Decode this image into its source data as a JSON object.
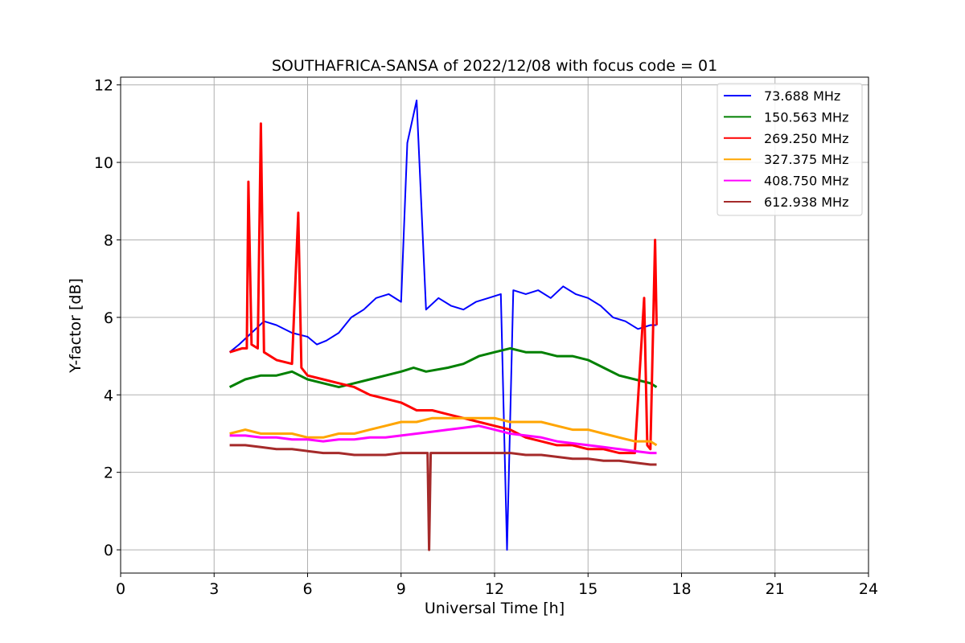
{
  "chart_data": {
    "type": "line",
    "title": "SOUTHAFRICA-SANSA of 2022/12/08 with focus code = 01",
    "xlabel": "Universal Time [h]",
    "ylabel": "Y-factor [dB]",
    "xlim": [
      0,
      24
    ],
    "ylim": [
      -0.6,
      12.2
    ],
    "xticks": [
      0,
      3,
      6,
      9,
      12,
      15,
      18,
      21,
      24
    ],
    "xtick_labels": [
      "0",
      "3",
      "6",
      "9",
      "12",
      "15",
      "18",
      "21",
      "24"
    ],
    "yticks": [
      0,
      2,
      4,
      6,
      8,
      10,
      12
    ],
    "ytick_labels": [
      "0",
      "2",
      "4",
      "6",
      "8",
      "10",
      "12"
    ],
    "grid": true,
    "legend_position": "top-right",
    "series": [
      {
        "name": " 73.688 MHz",
        "color": "#0000ff",
        "x": [
          3.5,
          3.8,
          4.2,
          4.6,
          5.0,
          5.5,
          6.0,
          6.3,
          6.6,
          7.0,
          7.4,
          7.8,
          8.2,
          8.6,
          9.0,
          9.2,
          9.5,
          9.8,
          10.2,
          10.6,
          11.0,
          11.4,
          11.8,
          12.2,
          12.4,
          12.6,
          13.0,
          13.4,
          13.8,
          14.2,
          14.6,
          15.0,
          15.4,
          15.8,
          16.2,
          16.6,
          17.0,
          17.2
        ],
        "y": [
          5.1,
          5.3,
          5.6,
          5.9,
          5.8,
          5.6,
          5.5,
          5.3,
          5.4,
          5.6,
          6.0,
          6.2,
          6.5,
          6.6,
          6.4,
          10.5,
          11.6,
          6.2,
          6.5,
          6.3,
          6.2,
          6.4,
          6.5,
          6.6,
          0.0,
          6.7,
          6.6,
          6.7,
          6.5,
          6.8,
          6.6,
          6.5,
          6.3,
          6.0,
          5.9,
          5.7,
          5.8,
          5.8
        ]
      },
      {
        "name": "150.563 MHz",
        "color": "#008000",
        "x": [
          3.5,
          4.0,
          4.5,
          5.0,
          5.5,
          6.0,
          6.5,
          7.0,
          7.5,
          8.0,
          8.5,
          9.0,
          9.4,
          9.8,
          10.5,
          11.0,
          11.5,
          12.0,
          12.5,
          13.0,
          13.5,
          14.0,
          14.5,
          15.0,
          15.5,
          16.0,
          16.5,
          17.0,
          17.2
        ],
        "y": [
          4.2,
          4.4,
          4.5,
          4.5,
          4.6,
          4.4,
          4.3,
          4.2,
          4.3,
          4.4,
          4.5,
          4.6,
          4.7,
          4.6,
          4.7,
          4.8,
          5.0,
          5.1,
          5.2,
          5.1,
          5.1,
          5.0,
          5.0,
          4.9,
          4.7,
          4.5,
          4.4,
          4.3,
          4.2
        ]
      },
      {
        "name": "269.250 MHz",
        "color": "#ff0000",
        "x": [
          3.5,
          3.9,
          4.05,
          4.1,
          4.2,
          4.4,
          4.5,
          4.6,
          5.0,
          5.5,
          5.7,
          5.8,
          6.0,
          6.5,
          7.0,
          7.5,
          8.0,
          8.5,
          9.0,
          9.5,
          10.0,
          10.5,
          11.0,
          11.5,
          12.0,
          12.5,
          13.0,
          13.5,
          14.0,
          14.5,
          15.0,
          15.5,
          16.0,
          16.5,
          16.8,
          16.9,
          17.0,
          17.15,
          17.2
        ],
        "y": [
          5.1,
          5.2,
          5.2,
          9.5,
          5.3,
          5.2,
          11.0,
          5.1,
          4.9,
          4.8,
          8.7,
          4.7,
          4.5,
          4.4,
          4.3,
          4.2,
          4.0,
          3.9,
          3.8,
          3.6,
          3.6,
          3.5,
          3.4,
          3.3,
          3.2,
          3.1,
          2.9,
          2.8,
          2.7,
          2.7,
          2.6,
          2.6,
          2.5,
          2.5,
          6.5,
          2.7,
          2.6,
          8.0,
          5.8
        ]
      },
      {
        "name": "327.375 MHz",
        "color": "#ffa500",
        "x": [
          3.5,
          4.0,
          4.5,
          5.0,
          5.5,
          6.0,
          6.5,
          7.0,
          7.5,
          8.0,
          8.5,
          9.0,
          9.5,
          10.0,
          10.5,
          11.0,
          11.5,
          12.0,
          12.5,
          13.0,
          13.5,
          14.0,
          14.5,
          15.0,
          15.5,
          16.0,
          16.5,
          17.0,
          17.2
        ],
        "y": [
          3.0,
          3.1,
          3.0,
          3.0,
          3.0,
          2.9,
          2.9,
          3.0,
          3.0,
          3.1,
          3.2,
          3.3,
          3.3,
          3.4,
          3.4,
          3.4,
          3.4,
          3.4,
          3.3,
          3.3,
          3.3,
          3.2,
          3.1,
          3.1,
          3.0,
          2.9,
          2.8,
          2.8,
          2.7
        ]
      },
      {
        "name": "408.750 MHz",
        "color": "#ff00ff",
        "x": [
          3.5,
          4.0,
          4.5,
          5.0,
          5.5,
          6.0,
          6.5,
          7.0,
          7.5,
          8.0,
          8.5,
          9.0,
          9.5,
          10.0,
          10.5,
          11.0,
          11.5,
          12.0,
          12.5,
          13.0,
          13.5,
          14.0,
          14.5,
          15.0,
          15.5,
          16.0,
          16.5,
          17.0,
          17.2
        ],
        "y": [
          2.95,
          2.95,
          2.9,
          2.9,
          2.85,
          2.85,
          2.8,
          2.85,
          2.85,
          2.9,
          2.9,
          2.95,
          3.0,
          3.05,
          3.1,
          3.15,
          3.2,
          3.1,
          3.0,
          2.95,
          2.9,
          2.8,
          2.75,
          2.7,
          2.65,
          2.6,
          2.55,
          2.5,
          2.5
        ]
      },
      {
        "name": "612.938 MHz",
        "color": "#a52a2a",
        "x": [
          3.5,
          4.0,
          4.5,
          5.0,
          5.5,
          6.0,
          6.5,
          7.0,
          7.5,
          8.0,
          8.5,
          9.0,
          9.5,
          9.85,
          9.9,
          9.95,
          10.5,
          11.0,
          11.5,
          12.0,
          12.5,
          13.0,
          13.5,
          14.0,
          14.5,
          15.0,
          15.5,
          16.0,
          16.5,
          17.0,
          17.2
        ],
        "y": [
          2.7,
          2.7,
          2.65,
          2.6,
          2.6,
          2.55,
          2.5,
          2.5,
          2.45,
          2.45,
          2.45,
          2.5,
          2.5,
          2.5,
          0.0,
          2.5,
          2.5,
          2.5,
          2.5,
          2.5,
          2.5,
          2.45,
          2.45,
          2.4,
          2.35,
          2.35,
          2.3,
          2.3,
          2.25,
          2.2,
          2.2
        ]
      }
    ]
  }
}
